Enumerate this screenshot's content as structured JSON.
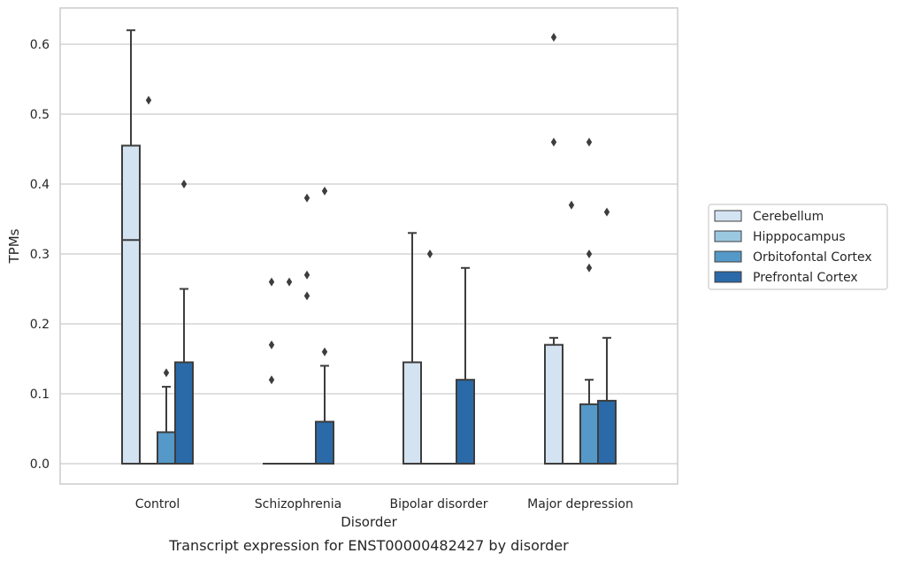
{
  "chart_data": {
    "type": "box",
    "caption": "Transcript expression for ENST00000482427 by disorder",
    "xlabel": "Disorder",
    "ylabel": "TPMs",
    "ylim": [
      -0.03,
      0.652
    ],
    "yticks": [
      "0.0",
      "0.1",
      "0.2",
      "0.3",
      "0.4",
      "0.5",
      "0.6"
    ],
    "grid": "horizontal",
    "legend_position": "right",
    "categories": [
      "Control",
      "Schizophrenia",
      "Bipolar disorder",
      "Major depression"
    ],
    "series": [
      {
        "name": "Cerebellum",
        "color": "#d3e3f2",
        "boxes": [
          {
            "q1": 0.0,
            "median": 0.32,
            "q3": 0.455,
            "whisker_low": 0.0,
            "whisker_high": 0.62,
            "outliers": []
          },
          {
            "q1": 0.0,
            "median": 0.0,
            "q3": 0.0,
            "whisker_low": 0.0,
            "whisker_high": 0.0,
            "outliers": [
              0.26,
              0.17,
              0.12
            ]
          },
          {
            "q1": 0.0,
            "median": 0.0,
            "q3": 0.145,
            "whisker_low": 0.0,
            "whisker_high": 0.33,
            "outliers": []
          },
          {
            "q1": 0.0,
            "median": 0.0,
            "q3": 0.17,
            "whisker_low": 0.0,
            "whisker_high": 0.18,
            "outliers": [
              0.61,
              0.46
            ]
          }
        ]
      },
      {
        "name": "Hipppocampus",
        "color": "#9ac8e1",
        "boxes": [
          {
            "q1": 0.0,
            "median": 0.0,
            "q3": 0.0,
            "whisker_low": 0.0,
            "whisker_high": 0.0,
            "outliers": [
              0.52
            ]
          },
          {
            "q1": 0.0,
            "median": 0.0,
            "q3": 0.0,
            "whisker_low": 0.0,
            "whisker_high": 0.0,
            "outliers": [
              0.26
            ]
          },
          {
            "q1": 0.0,
            "median": 0.0,
            "q3": 0.0,
            "whisker_low": 0.0,
            "whisker_high": 0.0,
            "outliers": [
              0.3
            ]
          },
          {
            "q1": 0.0,
            "median": 0.0,
            "q3": 0.0,
            "whisker_low": 0.0,
            "whisker_high": 0.0,
            "outliers": [
              0.37
            ]
          }
        ]
      },
      {
        "name": "Orbitofontal Cortex",
        "color": "#5599c8",
        "boxes": [
          {
            "q1": 0.0,
            "median": 0.0,
            "q3": 0.045,
            "whisker_low": 0.0,
            "whisker_high": 0.11,
            "outliers": [
              0.13
            ]
          },
          {
            "q1": 0.0,
            "median": 0.0,
            "q3": 0.0,
            "whisker_low": 0.0,
            "whisker_high": 0.0,
            "outliers": [
              0.38,
              0.27,
              0.24
            ]
          },
          {
            "q1": 0.0,
            "median": 0.0,
            "q3": 0.0,
            "whisker_low": 0.0,
            "whisker_high": 0.0,
            "outliers": []
          },
          {
            "q1": 0.0,
            "median": 0.0,
            "q3": 0.085,
            "whisker_low": 0.0,
            "whisker_high": 0.12,
            "outliers": [
              0.46,
              0.3,
              0.28
            ]
          }
        ]
      },
      {
        "name": "Prefrontal Cortex",
        "color": "#2a6aa8",
        "boxes": [
          {
            "q1": 0.0,
            "median": 0.0,
            "q3": 0.145,
            "whisker_low": 0.0,
            "whisker_high": 0.25,
            "outliers": [
              0.4
            ]
          },
          {
            "q1": 0.0,
            "median": 0.0,
            "q3": 0.06,
            "whisker_low": 0.0,
            "whisker_high": 0.14,
            "outliers": [
              0.39,
              0.16
            ]
          },
          {
            "q1": 0.0,
            "median": 0.0,
            "q3": 0.12,
            "whisker_low": 0.0,
            "whisker_high": 0.28,
            "outliers": []
          },
          {
            "q1": 0.0,
            "median": 0.0,
            "q3": 0.09,
            "whisker_low": 0.0,
            "whisker_high": 0.18,
            "outliers": [
              0.36
            ]
          }
        ]
      }
    ]
  }
}
